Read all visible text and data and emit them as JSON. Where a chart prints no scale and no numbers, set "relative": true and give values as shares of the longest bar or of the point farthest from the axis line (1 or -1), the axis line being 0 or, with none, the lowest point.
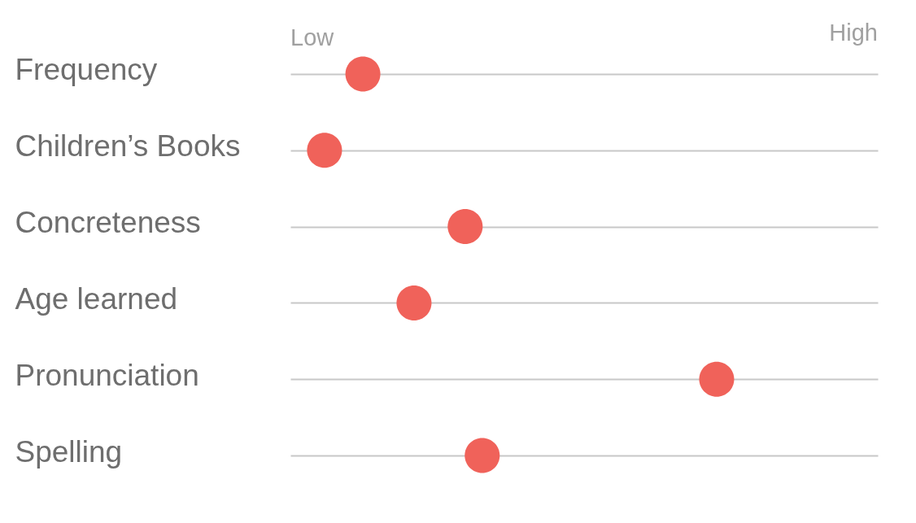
{
  "chart_data": {
    "type": "scatter",
    "orientation": "horizontal",
    "relative": true,
    "categories": [
      "Frequency",
      "Children’s Books",
      "Concreteness",
      "Age learned",
      "Pronunciation",
      "Spelling"
    ],
    "values": [
      0.17,
      0.08,
      0.41,
      0.29,
      1,
      0.45
    ],
    "color": "#f0625a",
    "annotations": [
      "Low",
      "High"
    ],
    "grid": "y"
  }
}
